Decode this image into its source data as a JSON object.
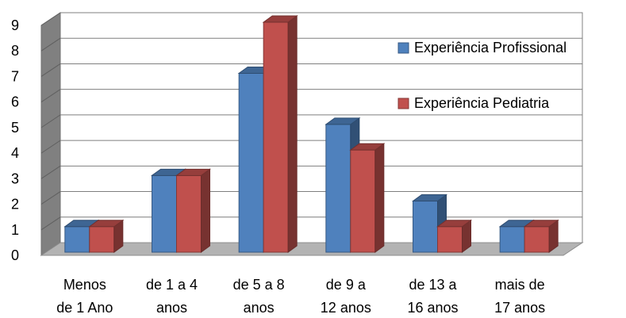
{
  "chart_data": {
    "type": "bar",
    "style": "3d-clustered-column",
    "categories": [
      [
        "Menos",
        "de 1 Ano"
      ],
      [
        "de 1 a 4",
        "anos"
      ],
      [
        "de 5 a 8",
        "anos"
      ],
      [
        "de 9 a",
        "12 anos"
      ],
      [
        "de 13 a",
        "16 anos"
      ],
      [
        "mais de",
        "17 anos"
      ]
    ],
    "series": [
      {
        "name": "Experiência Profissional",
        "values": [
          1,
          3,
          7,
          5,
          2,
          1
        ],
        "color": "#4F81BD"
      },
      {
        "name": "Experiência Pediatria",
        "values": [
          1,
          3,
          9,
          4,
          1,
          1
        ],
        "color": "#C0504D"
      }
    ],
    "ylim": [
      0,
      9
    ],
    "yticks": [
      0,
      1,
      2,
      3,
      4,
      5,
      6,
      7,
      8,
      9
    ],
    "grid": true,
    "legend_position": "right",
    "title": "",
    "xlabel": "",
    "ylabel": ""
  }
}
